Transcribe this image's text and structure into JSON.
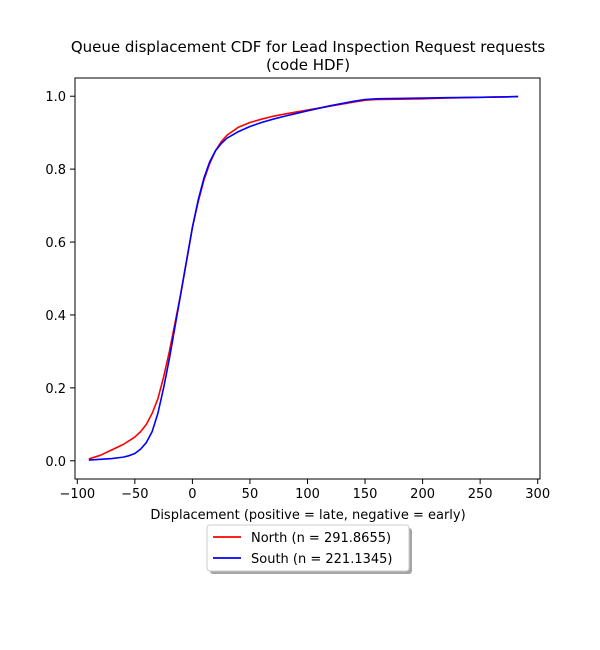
{
  "chart_data": {
    "type": "line",
    "title_line1": "Queue displacement CDF for Lead Inspection Request  requests",
    "title_line2": "(code HDF)",
    "xlabel": "Displacement (positive = late, negative = early)",
    "ylabel": "",
    "xlim": [
      -102,
      302
    ],
    "ylim": [
      -0.05,
      1.05
    ],
    "xticks": [
      -100,
      -50,
      0,
      50,
      100,
      150,
      200,
      250,
      300
    ],
    "xtick_labels": [
      "−100",
      "−50",
      "0",
      "50",
      "100",
      "150",
      "200",
      "250",
      "300"
    ],
    "yticks": [
      0.0,
      0.2,
      0.4,
      0.6,
      0.8,
      1.0
    ],
    "ytick_labels": [
      "0.0",
      "0.2",
      "0.4",
      "0.6",
      "0.8",
      "1.0"
    ],
    "grid": false,
    "legend_placement": "bottom-center",
    "series": [
      {
        "name": "North (n = 291.8655)",
        "color": "#ff0000",
        "x": [
          -90,
          -80,
          -70,
          -60,
          -50,
          -45,
          -40,
          -35,
          -30,
          -25,
          -20,
          -15,
          -10,
          -5,
          0,
          5,
          10,
          15,
          20,
          25,
          30,
          40,
          50,
          60,
          70,
          80,
          100,
          120,
          140,
          150,
          160,
          180,
          200,
          220,
          250,
          283
        ],
        "y": [
          0.005,
          0.015,
          0.03,
          0.045,
          0.065,
          0.08,
          0.1,
          0.13,
          0.17,
          0.23,
          0.3,
          0.38,
          0.46,
          0.55,
          0.64,
          0.71,
          0.77,
          0.815,
          0.85,
          0.875,
          0.893,
          0.915,
          0.928,
          0.937,
          0.945,
          0.951,
          0.962,
          0.973,
          0.984,
          0.989,
          0.991,
          0.992,
          0.993,
          0.995,
          0.997,
          0.999
        ]
      },
      {
        "name": "South (n = 221.1345)",
        "color": "#0000ff",
        "x": [
          -90,
          -80,
          -70,
          -60,
          -55,
          -50,
          -45,
          -40,
          -35,
          -30,
          -25,
          -20,
          -15,
          -10,
          -5,
          0,
          5,
          10,
          15,
          20,
          25,
          30,
          40,
          50,
          60,
          70,
          80,
          100,
          120,
          140,
          150,
          160,
          180,
          200,
          220,
          250,
          283
        ],
        "y": [
          0.002,
          0.004,
          0.006,
          0.01,
          0.014,
          0.02,
          0.032,
          0.05,
          0.08,
          0.13,
          0.2,
          0.28,
          0.37,
          0.46,
          0.55,
          0.64,
          0.715,
          0.775,
          0.82,
          0.85,
          0.87,
          0.885,
          0.903,
          0.917,
          0.928,
          0.937,
          0.945,
          0.96,
          0.974,
          0.986,
          0.991,
          0.993,
          0.994,
          0.995,
          0.996,
          0.997,
          0.999
        ]
      }
    ]
  }
}
